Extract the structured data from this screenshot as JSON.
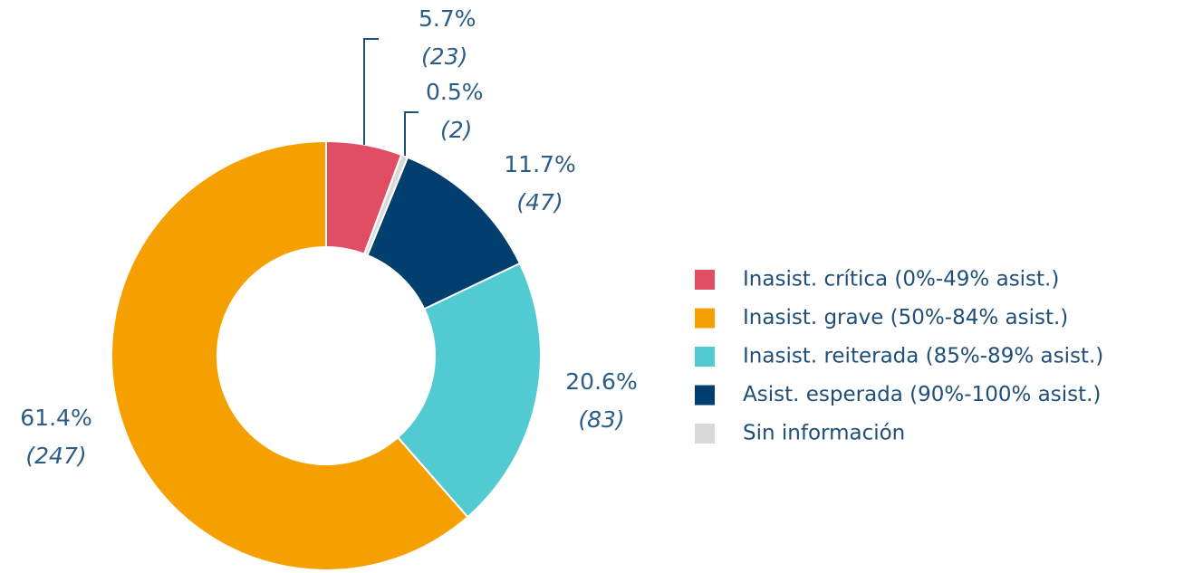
{
  "chart_data": {
    "type": "donut",
    "categories": [
      "Inasist. crítica (0%-49% asist.)",
      "Sin información",
      "Asist. esperada (90%-100% asist.)",
      "Inasist. reiterada (85%-89% asist.)",
      "Inasist. grave (50%-84% asist.)"
    ],
    "values": [
      5.7,
      0.5,
      11.7,
      20.6,
      61.4
    ],
    "value_labels": [
      "5.7%",
      "0.5%",
      "11.7%",
      "20.6%",
      "61.4%"
    ],
    "counts": [
      23,
      2,
      47,
      83,
      247
    ],
    "count_labels": [
      "(23)",
      "(2)",
      "(47)",
      "(83)",
      "(247)"
    ],
    "colors": [
      "#e14d62",
      "#d9d9d9",
      "#003f6e",
      "#52cad2",
      "#f5a000"
    ],
    "legend_order": [
      0,
      4,
      3,
      2,
      1
    ],
    "legend": "right"
  }
}
